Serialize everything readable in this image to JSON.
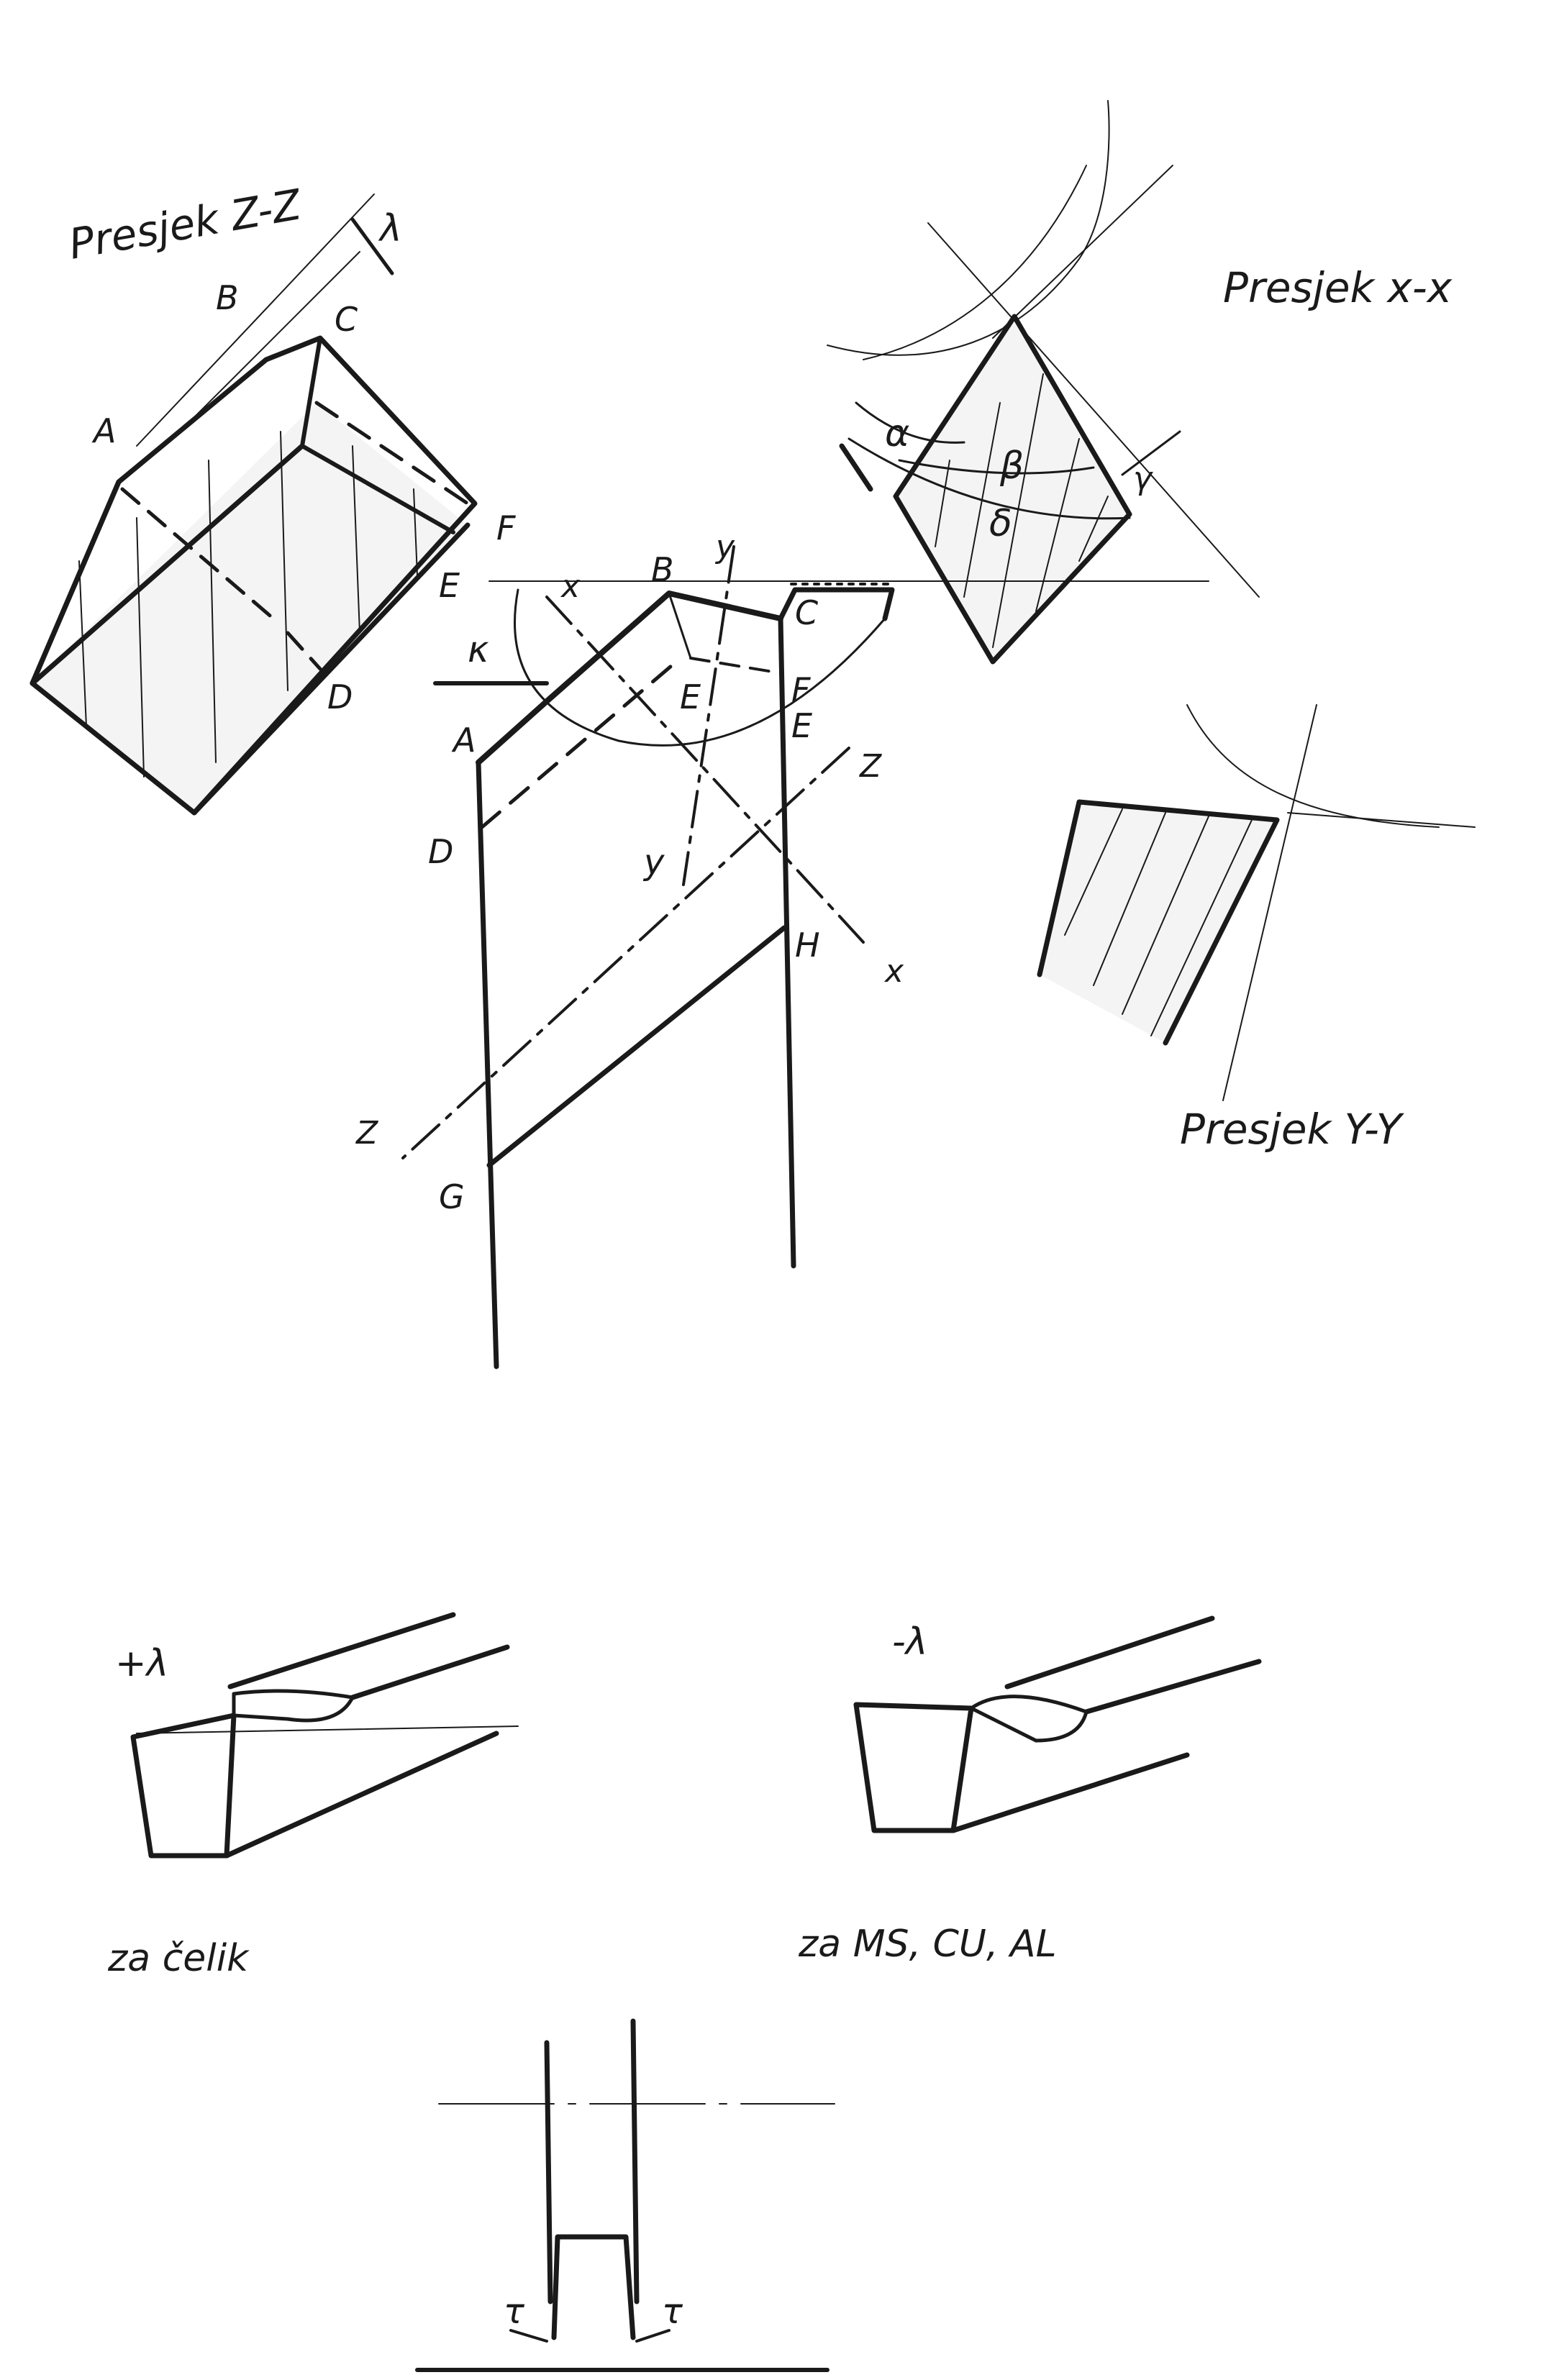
{
  "labels": {
    "section_zz": "Presjek Z-Z",
    "section_xx": "Presjek x-x",
    "section_yy": "Presjek Y-Y",
    "lambda": "λ",
    "alpha": "α",
    "beta": "β",
    "delta": "δ",
    "gamma": "γ",
    "kappa": "κ",
    "plus_lambda": "+λ",
    "minus_lambda": "-λ",
    "for_steel": "za čelik",
    "for_metals": "za MS, CU, AL",
    "tau_left": "τ",
    "tau_right": "τ"
  },
  "points": {
    "A": "A",
    "B": "B",
    "C": "C",
    "D": "D",
    "E": "E",
    "F": "F",
    "G": "G",
    "H": "H",
    "X": "x",
    "Y": "y",
    "Z": "Z"
  },
  "colors": {
    "ink": "#1a1a1a",
    "paper": "#ffffff",
    "faint": "#555555"
  }
}
